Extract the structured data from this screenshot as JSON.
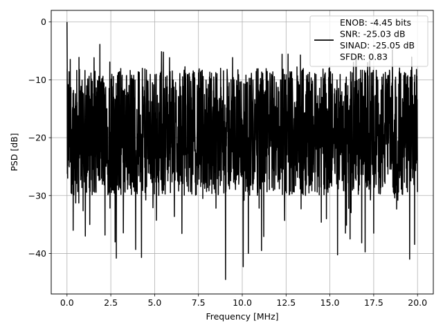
{
  "chart_data": {
    "type": "line",
    "title": "",
    "xlabel": "Frequency [MHz]",
    "ylabel": "PSD [dB]",
    "xlim": [
      -0.9,
      20.9
    ],
    "ylim": [
      -47,
      2
    ],
    "xticks": [
      0,
      2.5,
      5,
      7.5,
      10,
      12.5,
      15,
      17.5,
      20
    ],
    "xtick_labels": [
      "0.0",
      "2.5",
      "5.0",
      "7.5",
      "10.0",
      "12.5",
      "15.0",
      "17.5",
      "20.0"
    ],
    "yticks": [
      0,
      -10,
      -20,
      -30,
      -40
    ],
    "ytick_labels": [
      "0",
      "−10",
      "−20",
      "−30",
      "−40"
    ],
    "grid": true,
    "line_color": "#000000",
    "legend": {
      "placement": "top-right",
      "entries": [
        "ENOB: -4.45 bits",
        "SNR: -25.03 dB",
        "SINAD: -25.05 dB",
        "SFDR: 0.83"
      ]
    },
    "series": [
      {
        "n_points": 2048,
        "x_range": [
          0,
          20
        ],
        "features": {
          "peak": {
            "x": 0.0,
            "y": 0.0
          },
          "floor_band": [
            -30,
            -8
          ],
          "dips": [
            {
              "x": 0.35,
              "y": -36
            },
            {
              "x": 1.05,
              "y": -37
            },
            {
              "x": 1.3,
              "y": -35
            },
            {
              "x": 2.75,
              "y": -38
            },
            {
              "x": 4.25,
              "y": -40.7
            },
            {
              "x": 9.05,
              "y": -44.5
            },
            {
              "x": 10.05,
              "y": -42.3
            },
            {
              "x": 10.35,
              "y": -40
            },
            {
              "x": 11.1,
              "y": -39.5
            },
            {
              "x": 14.8,
              "y": -34
            },
            {
              "x": 16.15,
              "y": -37.5
            },
            {
              "x": 17.5,
              "y": -36.5
            },
            {
              "x": 19.55,
              "y": -41
            }
          ]
        }
      }
    ]
  }
}
